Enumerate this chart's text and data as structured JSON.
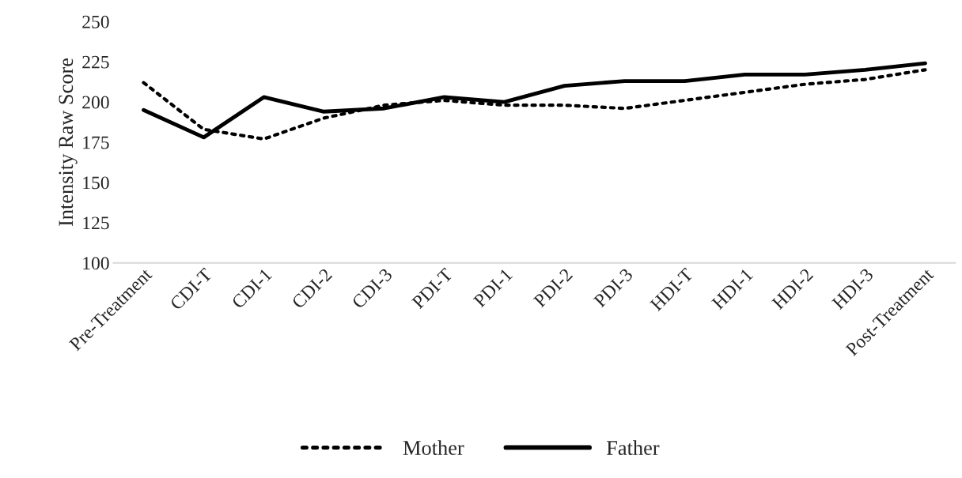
{
  "chart_data": {
    "type": "line",
    "ylabel": "Intensity Raw Score",
    "categories": [
      "Pre-Treatment",
      "CDI-T",
      "CDI-1",
      "CDI-2",
      "CDI-3",
      "PDI-T",
      "PDI-1",
      "PDI-2",
      "PDI-3",
      "HDI-T",
      "HDI-1",
      "HDI-2",
      "HDI-3",
      "Post-Treatment"
    ],
    "series": [
      {
        "name": "Mother",
        "color": "#000000",
        "line_style": "dotted",
        "values": [
          212,
          183,
          177,
          190,
          198,
          201,
          198,
          198,
          196,
          201,
          206,
          211,
          214,
          220
        ]
      },
      {
        "name": "Father",
        "color": "#000000",
        "line_style": "solid",
        "values": [
          195,
          178,
          203,
          194,
          196,
          203,
          200,
          210,
          213,
          213,
          217,
          217,
          220,
          224
        ]
      }
    ],
    "ylim": [
      100,
      250
    ],
    "yticks": [
      100,
      125,
      150,
      175,
      200,
      225,
      250
    ],
    "grid": false,
    "legend": "bottom",
    "marker": "none"
  }
}
